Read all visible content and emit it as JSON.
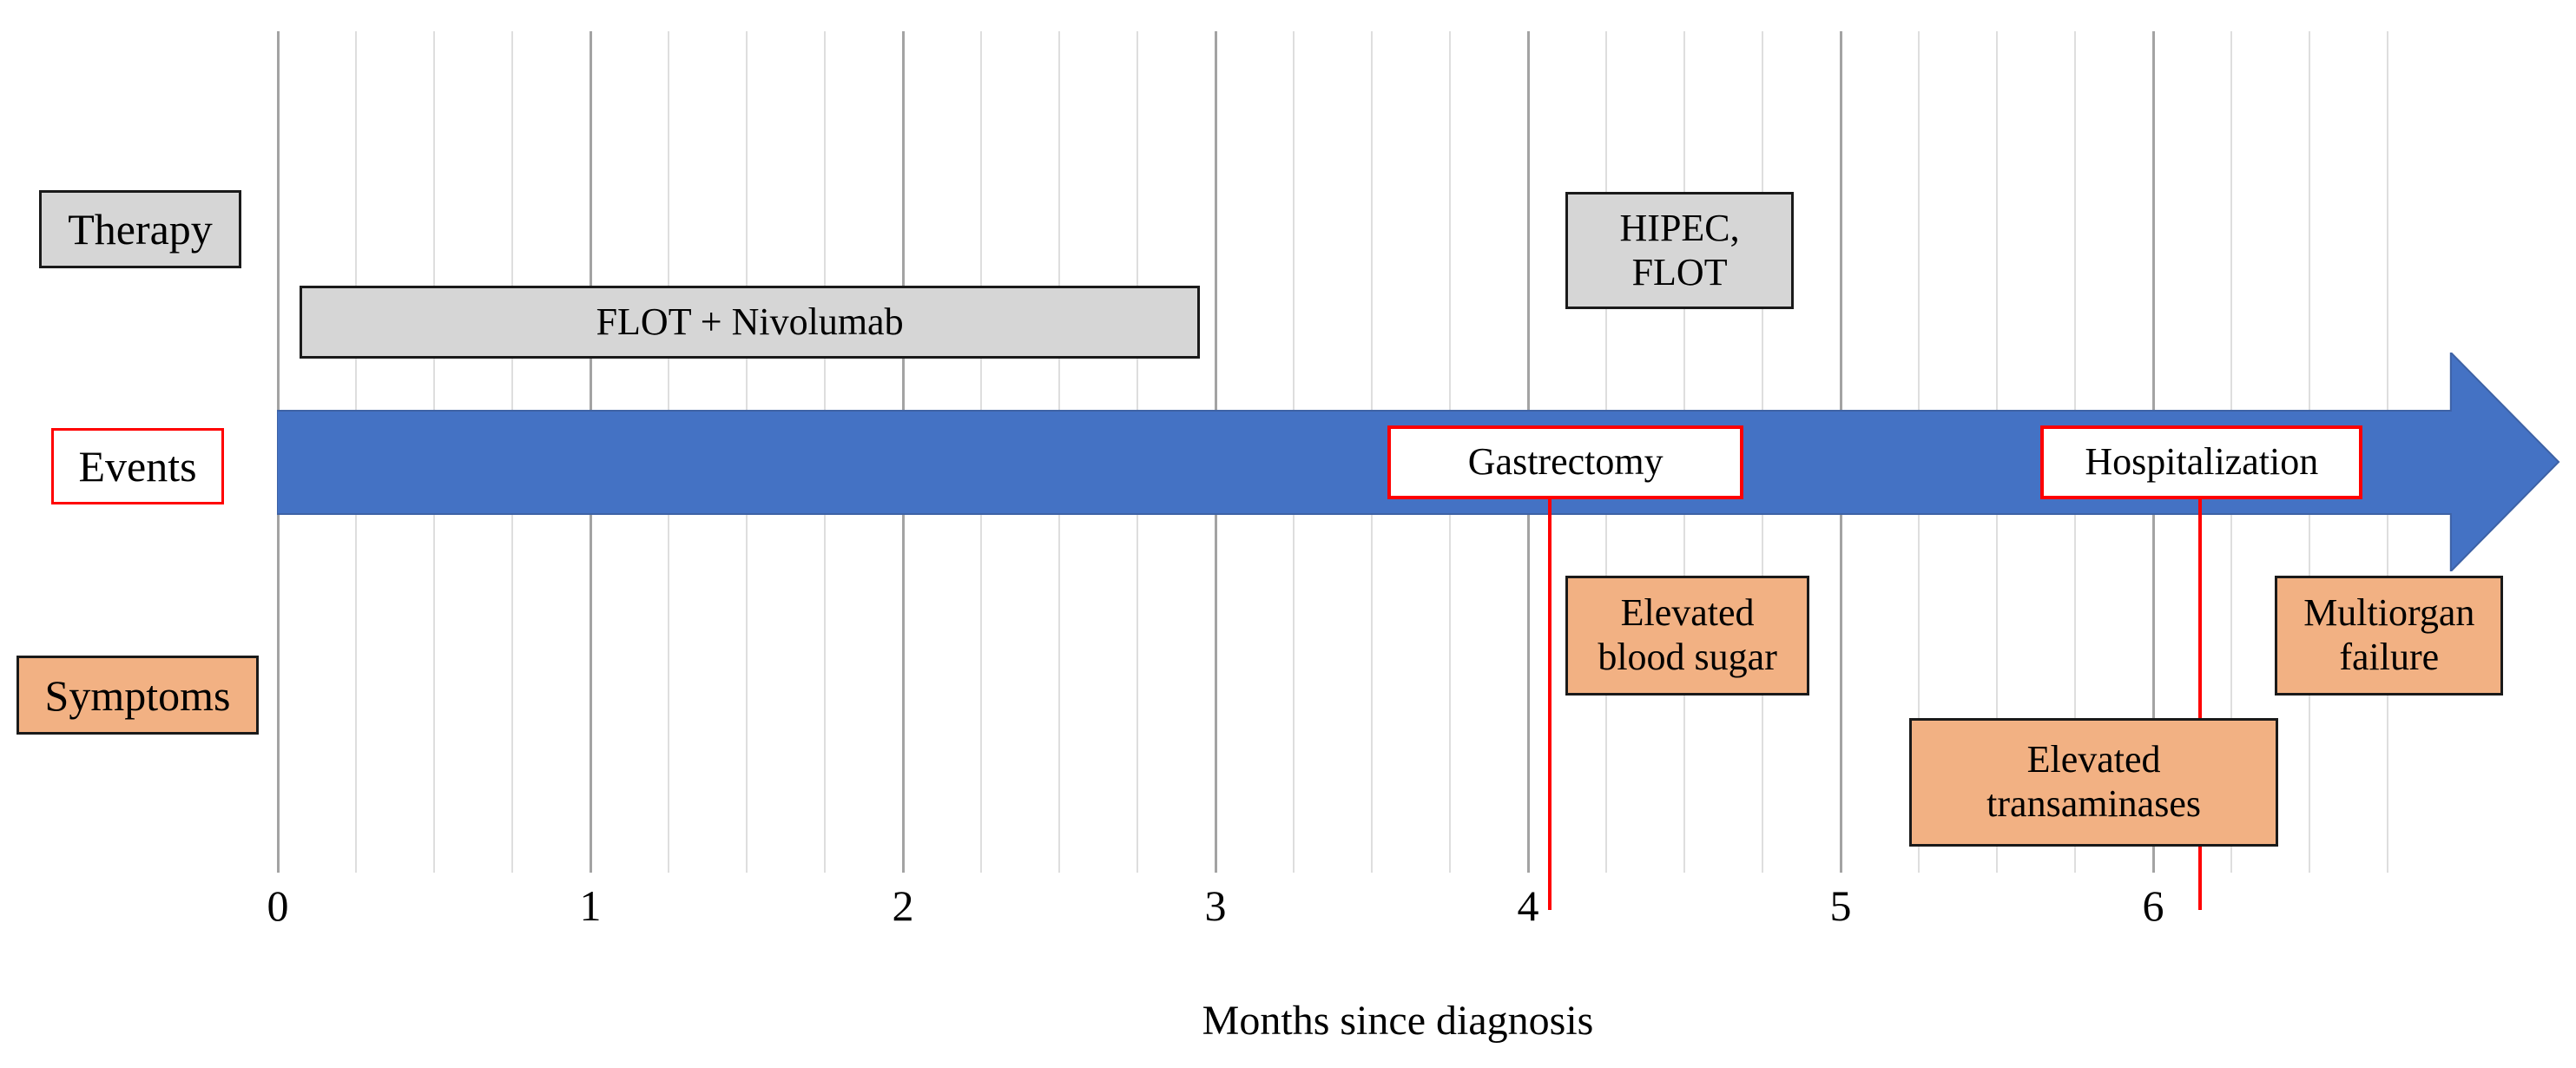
{
  "chart_data": {
    "type": "timeline",
    "title": "",
    "xlabel": "Months since diagnosis",
    "x_ticks": [
      0,
      1,
      2,
      3,
      4,
      5,
      6
    ],
    "x_minor_step": 0.25,
    "grid_range": [
      0,
      6.75
    ],
    "grid_on": true,
    "row_labels": [
      {
        "label": "Therapy",
        "category": "therapy"
      },
      {
        "label": "Events",
        "category": "events"
      },
      {
        "label": "Symptoms",
        "category": "symptoms"
      }
    ],
    "therapy_bars": [
      {
        "label": "FLOT + Nivolumab",
        "lines": [
          "FLOT + Nivolumab"
        ],
        "start_month": 0.07,
        "end_month": 2.95
      },
      {
        "label": "HIPEC, FLOT",
        "lines": [
          "HIPEC,",
          "FLOT"
        ],
        "start_month": 4.12,
        "end_month": 4.85
      }
    ],
    "events": [
      {
        "label": "Gastrectomy",
        "start_month": 3.55,
        "end_month": 4.69,
        "marker_month": 4.07
      },
      {
        "label": "Hospitalization",
        "start_month": 5.64,
        "end_month": 6.67,
        "marker_month": 6.15
      }
    ],
    "symptoms": [
      {
        "label": "Elevated blood sugar",
        "lines": [
          "Elevated",
          "blood sugar"
        ],
        "start_month": 4.12,
        "end_month": 4.9,
        "level": "upper"
      },
      {
        "label": "Elevated transaminases",
        "lines": [
          "Elevated",
          "transaminases"
        ],
        "start_month": 5.22,
        "end_month": 6.4,
        "level": "lower"
      },
      {
        "label": "Multiorgan failure",
        "lines": [
          "Multiorgan",
          "failure"
        ],
        "start_month": 6.39,
        "end_month": 7.12,
        "level": "upper"
      }
    ],
    "arrow": {
      "start_month": 0,
      "head_start_month": 6.955,
      "tip_month": 7.3
    },
    "colors": {
      "arrow_fill": "#4472c4",
      "arrow_stroke": "#3e62a5",
      "therapy_fill": "#d6d6d6",
      "symptom_fill": "#f2b183",
      "event_border": "#ff0000",
      "marker_red": "#ff0000",
      "grid_major": "#a3a3a3",
      "grid_minor": "#dedede",
      "text": "#000000"
    }
  }
}
